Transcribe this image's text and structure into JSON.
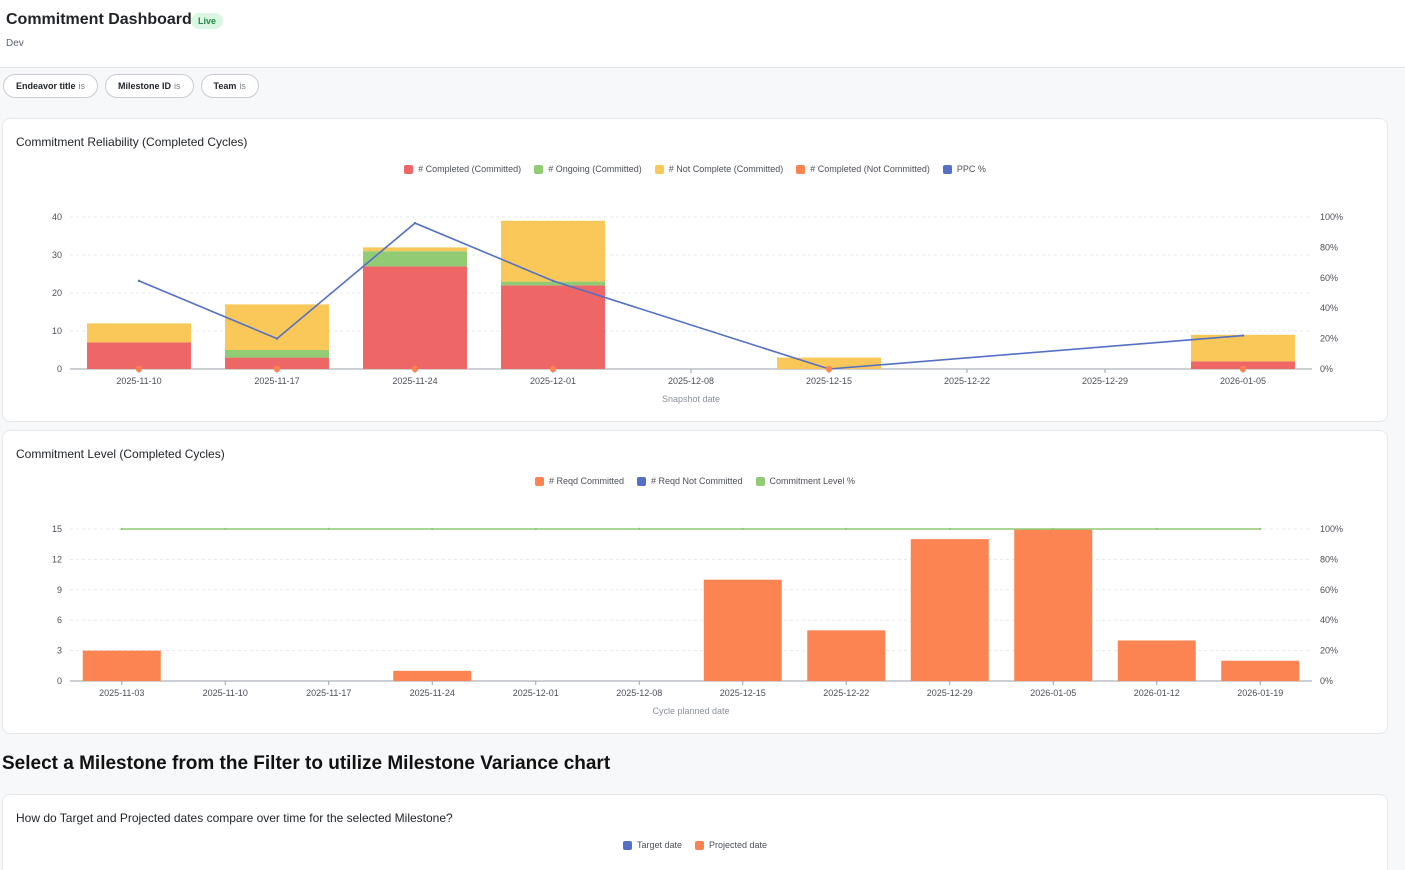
{
  "header": {
    "title": "Commitment Dashboard",
    "badge": "Live",
    "subtitle": "Dev"
  },
  "filters": [
    {
      "label": "Endeavor title",
      "op": "is"
    },
    {
      "label": "Milestone ID",
      "op": "is"
    },
    {
      "label": "Team",
      "op": "is"
    }
  ],
  "chart1": {
    "title": "Commitment Reliability (Completed Cycles)"
  },
  "chart2": {
    "title": "Commitment Level (Completed Cycles)"
  },
  "section": {
    "heading": "Select a Milestone from the Filter to utilize Milestone Variance chart"
  },
  "chart3": {
    "title": "How do Target and Projected dates compare over time for the selected Milestone?"
  },
  "chart_data": [
    {
      "type": "bar",
      "stacked": true,
      "categories": [
        "2025-11-10",
        "2025-11-17",
        "2025-11-24",
        "2025-12-01",
        "2025-12-08",
        "2025-12-15",
        "2025-12-22",
        "2025-12-29",
        "2026-01-05"
      ],
      "series": [
        {
          "name": "# Completed (Committed)",
          "color": "#ee6666",
          "values": [
            7,
            3,
            27,
            22,
            0,
            0,
            0,
            0,
            2
          ]
        },
        {
          "name": "# Ongoing (Committed)",
          "color": "#91cc75",
          "values": [
            0,
            2,
            4,
            1,
            0,
            0,
            0,
            0,
            0
          ]
        },
        {
          "name": "# Not Complete (Committed)",
          "color": "#fac858",
          "values": [
            5,
            12,
            1,
            16,
            0,
            3,
            0,
            0,
            7
          ]
        },
        {
          "name": "# Completed (Not Committed)",
          "color": "#fc8452",
          "values": [
            0,
            0,
            0,
            0,
            0,
            0,
            0,
            0,
            0
          ]
        },
        {
          "name": "PPC %",
          "color": "#5470c6",
          "type": "line",
          "axis": "right",
          "values": [
            58,
            20,
            96,
            58,
            null,
            0,
            null,
            null,
            22
          ]
        }
      ],
      "xlabel": "Snapshot date",
      "ylim": [
        0,
        40
      ],
      "yticks": [
        "0",
        "10",
        "20",
        "30",
        "40"
      ],
      "y2lim": [
        0,
        100
      ],
      "y2ticks": [
        "0%",
        "20%",
        "40%",
        "60%",
        "80%",
        "100%"
      ],
      "legend": "top-center",
      "grid": true
    },
    {
      "type": "bar",
      "categories": [
        "2025-11-03",
        "2025-11-10",
        "2025-11-17",
        "2025-11-24",
        "2025-12-01",
        "2025-12-08",
        "2025-12-15",
        "2025-12-22",
        "2025-12-29",
        "2026-01-05",
        "2026-01-12",
        "2026-01-19"
      ],
      "series": [
        {
          "name": "# Reqd Committed",
          "color": "#fc8452",
          "values": [
            3,
            0,
            0,
            1,
            0,
            0,
            10,
            5,
            14,
            15,
            4,
            2
          ]
        },
        {
          "name": "# Reqd Not Committed",
          "color": "#5470c6",
          "values": [
            0,
            0,
            0,
            0,
            0,
            0,
            0,
            0,
            0,
            0,
            0,
            0
          ]
        },
        {
          "name": "Commitment Level %",
          "color": "#91cc75",
          "type": "line",
          "axis": "right",
          "values": [
            100,
            100,
            100,
            100,
            100,
            100,
            100,
            100,
            100,
            100,
            100,
            100
          ]
        }
      ],
      "xlabel": "Cycle planned date",
      "ylim": [
        0,
        15
      ],
      "yticks": [
        "0",
        "3",
        "6",
        "9",
        "12",
        "15"
      ],
      "y2lim": [
        0,
        100
      ],
      "y2ticks": [
        "0%",
        "20%",
        "40%",
        "60%",
        "80%",
        "100%"
      ],
      "legend": "top-center",
      "grid": true
    },
    {
      "type": "line",
      "series": [
        {
          "name": "Target date",
          "color": "#5470c6",
          "values": []
        },
        {
          "name": "Projected date",
          "color": "#fc8452",
          "values": []
        }
      ],
      "legend": "top-center"
    }
  ]
}
